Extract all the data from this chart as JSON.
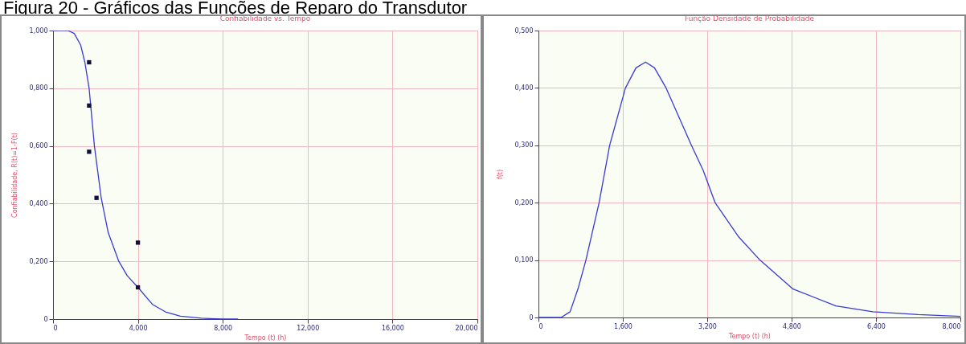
{
  "chart_data": [
    {
      "type": "line",
      "title": "Confiabilidade vs. Tempo",
      "xlabel": "Tempo (t) (h)",
      "ylabel": "Confiabilidade, R(t)=1-F(t)",
      "annotations": [
        "Figura 20 - Gráficos das Funções de Reparo do Transdutor"
      ],
      "xlim": [
        0,
        20
      ],
      "ylim": [
        0,
        1
      ],
      "xticks": [
        {
          "value": 0,
          "label": "0"
        },
        {
          "value": 4,
          "label": "4,000"
        },
        {
          "value": 8,
          "label": "8,000"
        },
        {
          "value": 12,
          "label": "12,000"
        },
        {
          "value": 16,
          "label": "16,000"
        },
        {
          "value": 20,
          "label": "20,000"
        }
      ],
      "yticks": [
        {
          "value": 0,
          "label": "0"
        },
        {
          "value": 0.2,
          "label": "0,200"
        },
        {
          "value": 0.4,
          "label": "0,400"
        },
        {
          "value": 0.6,
          "label": "0,600"
        },
        {
          "value": 0.8,
          "label": "0,800"
        },
        {
          "value": 1,
          "label": "1,000"
        }
      ],
      "grid": true,
      "series": [
        {
          "color": "#3a3ad0",
          "x": [
            0,
            0.7,
            1.0,
            1.3,
            1.5,
            1.7,
            1.95,
            2.27,
            2.6,
            3.1,
            3.5,
            4.0,
            4.7,
            5.3,
            6.0,
            7.0,
            8.0,
            8.7
          ],
          "values": [
            1,
            1,
            0.99,
            0.95,
            0.89,
            0.8,
            0.6,
            0.42,
            0.3,
            0.2,
            0.15,
            0.11,
            0.05,
            0.025,
            0.01,
            0.003,
            0,
            0
          ]
        },
        {
          "type": "scatter",
          "color": "#10103a",
          "marker": "square",
          "x": [
            1.7,
            1.7,
            1.7,
            2.05,
            4.0,
            4.0
          ],
          "values": [
            0.89,
            0.74,
            0.58,
            0.42,
            0.265,
            0.11
          ]
        }
      ]
    },
    {
      "type": "line",
      "title": "Função Densidade de Probabilidade",
      "xlabel": "Tempo (t) (h)",
      "ylabel": "f(t)",
      "xlim": [
        0,
        8
      ],
      "ylim": [
        0,
        0.5
      ],
      "xticks": [
        {
          "value": 0,
          "label": "0"
        },
        {
          "value": 1.6,
          "label": "1,600"
        },
        {
          "value": 3.2,
          "label": "3,200"
        },
        {
          "value": 4.8,
          "label": "4,800"
        },
        {
          "value": 6.4,
          "label": "6,400"
        },
        {
          "value": 8,
          "label": "8,000"
        }
      ],
      "yticks": [
        {
          "value": 0,
          "label": "0"
        },
        {
          "value": 0.1,
          "label": "0,100"
        },
        {
          "value": 0.2,
          "label": "0,200"
        },
        {
          "value": 0.3,
          "label": "0,300"
        },
        {
          "value": 0.4,
          "label": "0,400"
        },
        {
          "value": 0.5,
          "label": "0,500"
        }
      ],
      "grid": true,
      "series": [
        {
          "color": "#3a3ad0",
          "x": [
            0,
            0.43,
            0.6,
            0.75,
            0.9,
            1.15,
            1.35,
            1.65,
            1.85,
            2.03,
            2.2,
            2.42,
            2.9,
            3.125,
            3.35,
            3.8,
            4.2,
            4.82,
            5.64,
            6.34,
            7.2,
            8.0
          ],
          "values": [
            0,
            0,
            0.01,
            0.05,
            0.1,
            0.2,
            0.3,
            0.4,
            0.435,
            0.445,
            0.435,
            0.4,
            0.3,
            0.256,
            0.2,
            0.14,
            0.1,
            0.05,
            0.02,
            0.01,
            0.005,
            0.002
          ]
        }
      ]
    }
  ]
}
